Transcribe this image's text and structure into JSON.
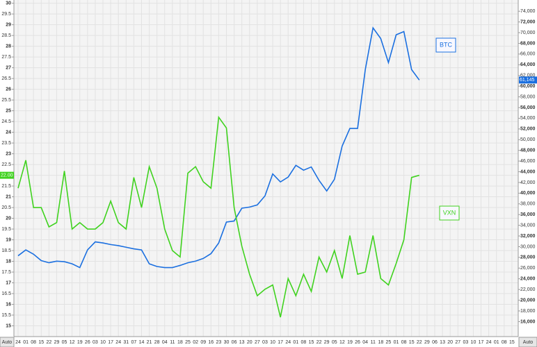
{
  "chart_data": {
    "type": "line",
    "categories": [
      "24",
      "01",
      "08",
      "15",
      "22",
      "29",
      "05",
      "12",
      "19",
      "26",
      "03",
      "10",
      "17",
      "24",
      "31",
      "07",
      "14",
      "21",
      "28",
      "04",
      "11",
      "18",
      "25",
      "02",
      "09",
      "16",
      "23",
      "30",
      "06",
      "13",
      "20",
      "27",
      "03",
      "10",
      "17",
      "24",
      "01",
      "08",
      "15",
      "22",
      "29",
      "05",
      "12",
      "19",
      "26",
      "04",
      "11",
      "18",
      "25",
      "01",
      "08",
      "15",
      "22",
      "29",
      "06",
      "13",
      "20",
      "27",
      "03",
      "10",
      "17",
      "24",
      "01",
      "08",
      "15"
    ],
    "series": [
      {
        "name": "BTC",
        "color": "#1a6fe0",
        "axis": "y2",
        "last_label": "61,145",
        "values": [
          28300,
          29400,
          28600,
          27400,
          27000,
          27300,
          27200,
          26800,
          26100,
          29400,
          30900,
          30700,
          30400,
          30200,
          29900,
          29600,
          29400,
          26800,
          26300,
          26100,
          26100,
          26500,
          27000,
          27300,
          27800,
          28700,
          30700,
          34600,
          34800,
          37200,
          37400,
          37800,
          39500,
          43600,
          42100,
          43000,
          45200,
          44300,
          44900,
          42400,
          40400,
          42600,
          48800,
          52100,
          52100,
          63100,
          70900,
          68900,
          64400,
          69600,
          70200,
          63100,
          61145,
          null,
          null,
          null,
          null,
          null,
          null,
          null,
          null,
          null,
          null,
          null,
          null
        ]
      },
      {
        "name": "VXN",
        "color": "#3fd21e",
        "axis": "y",
        "last_label": "22.00",
        "values": [
          21.4,
          22.7,
          20.5,
          20.5,
          19.6,
          19.8,
          22.2,
          19.5,
          19.8,
          19.5,
          19.5,
          19.8,
          20.8,
          19.8,
          19.5,
          21.9,
          20.5,
          22.4,
          21.4,
          19.5,
          18.5,
          18.2,
          22.1,
          22.4,
          21.7,
          21.4,
          24.7,
          24.2,
          20.5,
          18.7,
          17.4,
          16.4,
          16.7,
          16.9,
          15.4,
          17.2,
          16.4,
          17.4,
          16.6,
          18.2,
          17.5,
          18.5,
          17.2,
          19.2,
          17.4,
          17.5,
          19.2,
          17.2,
          16.9,
          17.9,
          19.0,
          21.9,
          22,
          null,
          null,
          null,
          null,
          null,
          null,
          null,
          null,
          null,
          null,
          null,
          null
        ]
      }
    ],
    "ylim": [
      14.5,
      30.15
    ],
    "yticks": [
      15,
      15.5,
      16,
      16.5,
      17,
      17.5,
      18,
      18.5,
      19,
      19.5,
      20,
      20.5,
      21,
      21.5,
      22,
      22.5,
      23,
      23.5,
      24,
      24.5,
      25,
      25.5,
      26,
      26.5,
      27,
      27.5,
      28,
      28.5,
      29,
      29.5,
      30
    ],
    "y2lim": [
      13200,
      76100
    ],
    "y2ticks": [
      {
        "value": 16000,
        "label": "16,000"
      },
      {
        "value": 18000,
        "label": "18,000"
      },
      {
        "value": 20000,
        "label": "20,000"
      },
      {
        "value": 22000,
        "label": "22,000"
      },
      {
        "value": 24000,
        "label": "24,000"
      },
      {
        "value": 26000,
        "label": "26,000"
      },
      {
        "value": 28000,
        "label": "28,000"
      },
      {
        "value": 30000,
        "label": "30,000"
      },
      {
        "value": 32000,
        "label": "32,000"
      },
      {
        "value": 34000,
        "label": "34,000"
      },
      {
        "value": 36000,
        "label": "36,000"
      },
      {
        "value": 38000,
        "label": "38,000"
      },
      {
        "value": 40000,
        "label": "40,000"
      },
      {
        "value": 42000,
        "label": "42,000"
      },
      {
        "value": 44000,
        "label": "44,000"
      },
      {
        "value": 46000,
        "label": "46,000"
      },
      {
        "value": 48000,
        "label": "48,000"
      },
      {
        "value": 50000,
        "label": "50,000"
      },
      {
        "value": 52000,
        "label": "52,000"
      },
      {
        "value": 54000,
        "label": "54,000"
      },
      {
        "value": 56000,
        "label": "56,000"
      },
      {
        "value": 58000,
        "label": "58,000"
      },
      {
        "value": 60000,
        "label": "60,000"
      },
      {
        "value": 62000,
        "label": "62,000"
      },
      {
        "value": 64000,
        "label": "64,000"
      },
      {
        "value": 66000,
        "label": "66,000"
      },
      {
        "value": 68000,
        "label": "68,000"
      },
      {
        "value": 70000,
        "label": "70,000"
      },
      {
        "value": 72000,
        "label": "72,000"
      },
      {
        "value": 74000,
        "label": "74,000"
      }
    ],
    "grid": true,
    "left_axis_mode": "Auto",
    "right_axis_mode": "Auto"
  }
}
